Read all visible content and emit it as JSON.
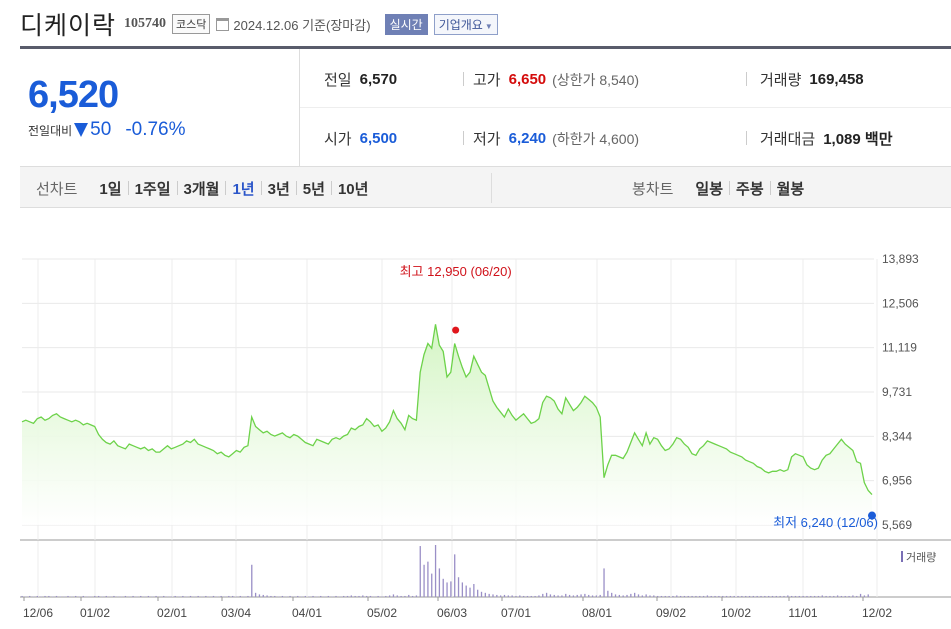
{
  "header": {
    "name": "디케이락",
    "code": "105740",
    "market": "코스닥",
    "date": "2024.12.06",
    "basis": "기준(장마감)",
    "realtime_label": "실시간",
    "company_label": "기업개요"
  },
  "quote": {
    "price": "6,520",
    "change_label": "전일대비",
    "change_amount": "50",
    "change_rate": "-0.76%",
    "prev_label": "전일",
    "prev": "6,570",
    "high_label": "고가",
    "high": "6,650",
    "upper_limit": "(상한가 8,540)",
    "volume_label": "거래량",
    "volume": "169,458",
    "open_label": "시가",
    "open": "6,500",
    "low_label": "저가",
    "low": "6,240",
    "lower_limit": "(하한가 4,600)",
    "amount_label": "거래대금",
    "amount": "1,089 백만"
  },
  "toolbar": {
    "line_title": "선차트",
    "line_periods": [
      "1일",
      "1주일",
      "3개월",
      "1년",
      "3년",
      "5년",
      "10년"
    ],
    "active_period": "1년",
    "candle_title": "봉차트",
    "candle_periods": [
      "일봉",
      "주봉",
      "월봉"
    ]
  },
  "chart_data": {
    "type": "area",
    "y_ticks": [
      "13,893",
      "12,506",
      "11,119",
      "9,731",
      "8,344",
      "6,956",
      "5,569"
    ],
    "ylim": [
      5569,
      13893
    ],
    "x_ticks": [
      "12/06",
      "01/02",
      "02/01",
      "03/04",
      "04/01",
      "05/02",
      "06/03",
      "07/01",
      "08/01",
      "09/02",
      "10/02",
      "11/01",
      "12/02"
    ],
    "max_annotation": "최고 12,950 (06/20)",
    "min_annotation": "최저 6,240 (12/06)",
    "volume_legend": "거래량",
    "line_color": "#6dd24a",
    "fill_color": "#d4f5c4",
    "prices": [
      8800,
      8850,
      8800,
      8750,
      8900,
      8950,
      8850,
      8900,
      9000,
      9050,
      8950,
      8900,
      8850,
      8800,
      8850,
      8800,
      8700,
      8750,
      8700,
      8650,
      8400,
      8250,
      8150,
      8100,
      8200,
      8050,
      8000,
      7950,
      8100,
      8050,
      8000,
      7950,
      8000,
      7900,
      7950,
      7850,
      7850,
      7950,
      8050,
      7950,
      8000,
      8050,
      8100,
      8200,
      8150,
      8250,
      8100,
      8050,
      8000,
      7950,
      7900,
      7800,
      7850,
      7750,
      7700,
      7800,
      7900,
      7850,
      8000,
      8050,
      8950,
      8650,
      8550,
      8450,
      8500,
      8400,
      8350,
      8400,
      8450,
      8350,
      8300,
      8400,
      8350,
      8250,
      8150,
      8100,
      8050,
      8250,
      8200,
      8150,
      8100,
      8250,
      8300,
      8250,
      8350,
      8400,
      8600,
      8550,
      8650,
      8700,
      8900,
      8800,
      8650,
      8700,
      8500,
      8600,
      8800,
      9150,
      8900,
      8750,
      8550,
      9000,
      8900,
      8850,
      10350,
      10900,
      11250,
      11100,
      11850,
      11200,
      11000,
      10200,
      10350,
      11250,
      10850,
      10500,
      10200,
      10350,
      10850,
      10600,
      10350,
      10250,
      9850,
      9450,
      9250,
      9100,
      8950,
      9200,
      9000,
      8850,
      8950,
      9050,
      8900,
      8750,
      8800,
      8900,
      9400,
      9600,
      9550,
      9450,
      9200,
      9050,
      9550,
      9350,
      9150,
      9250,
      9400,
      9600,
      9500,
      9400,
      9250,
      8950,
      7050,
      7450,
      7750,
      7750,
      7700,
      7650,
      7850,
      8150,
      8450,
      8250,
      8050,
      8450,
      8100,
      8300,
      8250,
      8050,
      7900,
      7950,
      8100,
      8300,
      8250,
      8100,
      8000,
      7800,
      7750,
      7950,
      8050,
      8200,
      8150,
      8100,
      8050,
      8000,
      7950,
      7850,
      7800,
      7750,
      7700,
      7600,
      7550,
      7500,
      7400,
      7350,
      7250,
      7200,
      7250,
      7250,
      7300,
      7250,
      7300,
      7700,
      7800,
      7750,
      7700,
      7450,
      7350,
      7300,
      7350,
      7600,
      7750,
      7800,
      7950,
      8100,
      8250,
      8100,
      8000,
      7900,
      7550,
      7500,
      6900,
      6650,
      6520
    ],
    "max_index": 113,
    "max_value": 12950,
    "min_value": 6240,
    "volumes": [
      0.02,
      0.01,
      0.02,
      0.01,
      0.02,
      0.01,
      0.02,
      0.02,
      0.01,
      0.02,
      0.01,
      0.01,
      0.02,
      0.01,
      0.02,
      0.01,
      0.02,
      0.01,
      0.01,
      0.02,
      0.02,
      0.01,
      0.02,
      0.01,
      0.02,
      0.01,
      0.01,
      0.02,
      0.01,
      0.02,
      0.01,
      0.02,
      0.01,
      0.02,
      0.01,
      0.02,
      0.01,
      0.02,
      0.01,
      0.01,
      0.02,
      0.01,
      0.02,
      0.01,
      0.02,
      0.01,
      0.02,
      0.01,
      0.02,
      0.01,
      0.02,
      0.01,
      0.02,
      0.01,
      0.02,
      0.02,
      0.01,
      0.02,
      0.01,
      0.02,
      0.62,
      0.08,
      0.05,
      0.04,
      0.03,
      0.02,
      0.02,
      0.01,
      0.02,
      0.01,
      0.02,
      0.01,
      0.02,
      0.01,
      0.02,
      0.01,
      0.02,
      0.01,
      0.02,
      0.01,
      0.02,
      0.01,
      0.02,
      0.01,
      0.02,
      0.02,
      0.03,
      0.02,
      0.02,
      0.03,
      0.02,
      0.02,
      0.01,
      0.02,
      0.01,
      0.02,
      0.03,
      0.05,
      0.03,
      0.02,
      0.02,
      0.04,
      0.02,
      0.03,
      0.98,
      0.62,
      0.68,
      0.45,
      1.0,
      0.55,
      0.35,
      0.28,
      0.3,
      0.82,
      0.38,
      0.28,
      0.22,
      0.18,
      0.25,
      0.14,
      0.1,
      0.08,
      0.06,
      0.05,
      0.04,
      0.03,
      0.04,
      0.03,
      0.03,
      0.02,
      0.03,
      0.02,
      0.02,
      0.02,
      0.02,
      0.03,
      0.06,
      0.08,
      0.05,
      0.04,
      0.03,
      0.03,
      0.06,
      0.04,
      0.03,
      0.04,
      0.05,
      0.06,
      0.04,
      0.03,
      0.03,
      0.04,
      0.55,
      0.12,
      0.08,
      0.05,
      0.04,
      0.03,
      0.04,
      0.06,
      0.08,
      0.05,
      0.03,
      0.05,
      0.03,
      0.03,
      0.02,
      0.02,
      0.02,
      0.02,
      0.02,
      0.03,
      0.02,
      0.02,
      0.02,
      0.02,
      0.02,
      0.02,
      0.02,
      0.03,
      0.02,
      0.02,
      0.02,
      0.02,
      0.02,
      0.02,
      0.02,
      0.02,
      0.02,
      0.02,
      0.02,
      0.02,
      0.02,
      0.02,
      0.02,
      0.02,
      0.02,
      0.02,
      0.02,
      0.02,
      0.03,
      0.02,
      0.02,
      0.02,
      0.02,
      0.02,
      0.02,
      0.02,
      0.02,
      0.03,
      0.02,
      0.02,
      0.02,
      0.03,
      0.02,
      0.02,
      0.02,
      0.03,
      0.02,
      0.06,
      0.03,
      0.05
    ]
  }
}
